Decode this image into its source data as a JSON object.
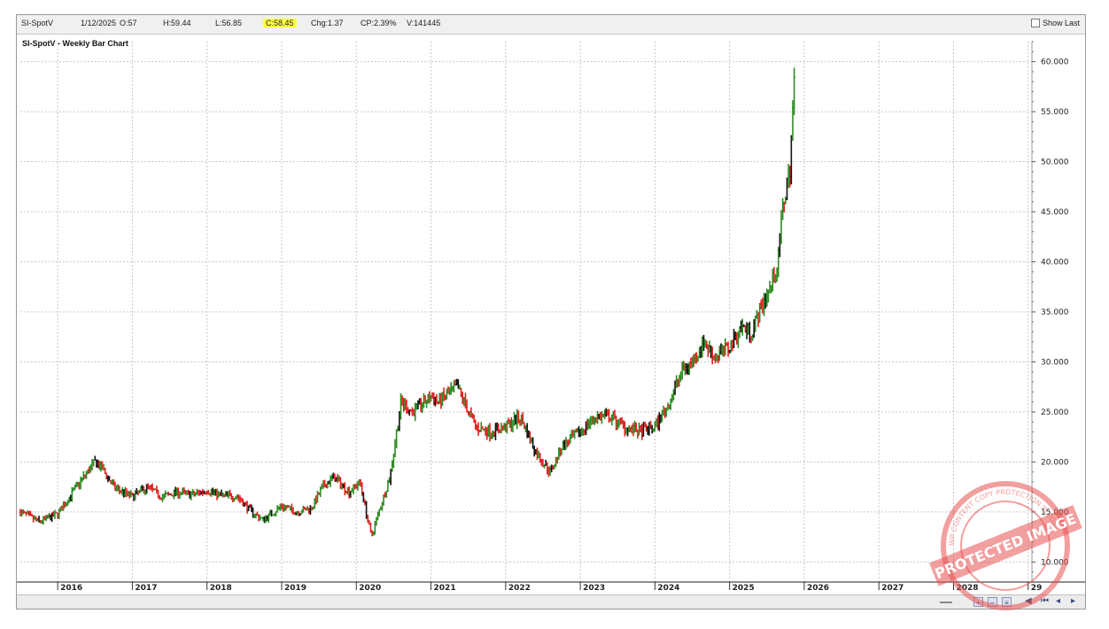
{
  "infobar": {
    "symbol": "SI-SpotV",
    "date": "1/12/2025",
    "open": "O:57",
    "high": "H:59.44",
    "low": "L:56.85",
    "close": "C:58.45",
    "change": "Chg:1.37",
    "change_pct": "CP:2.39%",
    "volume": "V:141445",
    "show_last": "Show Last"
  },
  "watermark": {
    "text": "PROTECTED IMAGE",
    "ring_text": "WP CONTENT COPY PROTECTION PLUGIN"
  },
  "colors": {
    "up": "#2e8b22",
    "down": "#e02020",
    "neutral": "#111111",
    "grid": "#c8c8c8",
    "highlight": "#ffff44"
  },
  "chart_data": {
    "type": "bar",
    "title": "SI-SpotV - Weekly Bar Chart",
    "ylim": [
      8,
      62
    ],
    "y_ticks": [
      "60.000",
      "55.000",
      "50.000",
      "45.000",
      "40.000",
      "35.000",
      "30.000",
      "25.000",
      "20.000",
      "15.000",
      "10.000"
    ],
    "x_ticks": [
      "2016",
      "2017",
      "2018",
      "2019",
      "2020",
      "2021",
      "2022",
      "2023",
      "2024",
      "2025",
      "2026",
      "2027",
      "2028",
      "29"
    ],
    "xlim": [
      2015.5,
      2029.05
    ],
    "grid": true,
    "series": [
      {
        "x": [
          2015.5,
          2015.75,
          2016.0,
          2016.25,
          2016.5,
          2016.6,
          2016.75,
          2017.0,
          2017.2,
          2017.4,
          2017.6,
          2017.8,
          2018.0,
          2018.2,
          2018.4,
          2018.6,
          2018.75,
          2019.0,
          2019.2,
          2019.4,
          2019.55,
          2019.7,
          2019.9,
          2020.05,
          2020.2,
          2020.3,
          2020.45,
          2020.6,
          2020.75,
          2021.0,
          2021.1,
          2021.35,
          2021.6,
          2021.8,
          2022.0,
          2022.2,
          2022.4,
          2022.6,
          2022.75,
          2023.0,
          2023.2,
          2023.4,
          2023.6,
          2023.8,
          2024.0,
          2024.2,
          2024.35,
          2024.5,
          2024.65,
          2024.8,
          2025.0,
          2025.15,
          2025.3,
          2025.45,
          2025.55,
          2025.65,
          2025.72,
          2025.8,
          2025.87
        ],
        "close": [
          15.0,
          14.0,
          14.8,
          17.5,
          20.0,
          19.3,
          17.5,
          16.5,
          17.5,
          16.5,
          17.0,
          16.7,
          17.2,
          16.6,
          16.6,
          15.0,
          14.2,
          15.6,
          15.0,
          15.4,
          17.5,
          18.5,
          17.0,
          18.0,
          12.5,
          15.0,
          18.5,
          26.0,
          25.0,
          26.5,
          26.0,
          27.5,
          23.5,
          23.0,
          23.5,
          24.5,
          21.0,
          19.0,
          21.5,
          23.0,
          24.5,
          24.5,
          23.5,
          23.0,
          23.5,
          26.0,
          29.0,
          30.0,
          32.0,
          30.5,
          31.5,
          33.5,
          33.0,
          36.0,
          37.5,
          40.0,
          46.0,
          48.5,
          58.45
        ]
      }
    ]
  }
}
